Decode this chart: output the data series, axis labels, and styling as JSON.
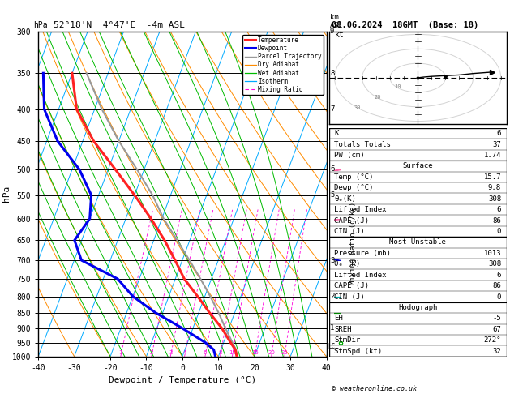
{
  "title_left": "52°18'N  4°47'E  -4m ASL",
  "title_right": "08.06.2024  18GMT  (Base: 18)",
  "xlabel": "Dewpoint / Temperature (°C)",
  "ylabel_left": "hPa",
  "pressure_levels": [
    300,
    350,
    400,
    450,
    500,
    550,
    600,
    650,
    700,
    750,
    800,
    850,
    900,
    950,
    1000
  ],
  "isotherm_color": "#00aaff",
  "dry_adiabat_color": "#ff8c00",
  "wet_adiabat_color": "#00bb00",
  "mixing_ratio_color": "#ff00dd",
  "temperature_color": "#ff2222",
  "dewpoint_color": "#0000ee",
  "parcel_color": "#999999",
  "skew_factor": 28,
  "sounding_temp": [
    15.7,
    14.0,
    12.0,
    8.0,
    3.0,
    -2.0,
    -7.5,
    -12.0,
    -17.0,
    -23.0,
    -30.0,
    -38.0,
    -47.0,
    -55.0,
    -60.0
  ],
  "sounding_dewp": [
    9.8,
    8.0,
    5.0,
    -3.0,
    -12.0,
    -20.0,
    -26.0,
    -38.0,
    -42.0,
    -40.0,
    -42.0,
    -48.0,
    -57.0,
    -64.0,
    -68.0
  ],
  "sounding_pres": [
    1013,
    975,
    950,
    900,
    850,
    800,
    750,
    700,
    650,
    600,
    550,
    500,
    450,
    400,
    350
  ],
  "parcel_temp": [
    15.7,
    14.2,
    12.5,
    9.0,
    5.5,
    1.5,
    -3.0,
    -8.0,
    -13.5,
    -19.5,
    -25.0,
    -32.0,
    -40.0,
    -48.0,
    -56.0
  ],
  "parcel_pres": [
    1013,
    975,
    950,
    900,
    850,
    800,
    750,
    700,
    650,
    600,
    550,
    500,
    450,
    400,
    350
  ],
  "mixing_ratios": [
    1,
    2,
    3,
    4,
    6,
    8,
    10,
    15,
    20,
    25
  ],
  "lcl_pressure": 963,
  "km_labels": [
    [
      300,
      "9"
    ],
    [
      350,
      "8"
    ],
    [
      400,
      "7"
    ],
    [
      500,
      "6"
    ],
    [
      550,
      "5"
    ],
    [
      700,
      "3"
    ],
    [
      800,
      "2"
    ],
    [
      900,
      "1"
    ],
    [
      963,
      "LCL"
    ]
  ],
  "wind_barb_data": [
    [
      350,
      25,
      5
    ],
    [
      400,
      22,
      3
    ],
    [
      500,
      18,
      2
    ],
    [
      600,
      12,
      1
    ],
    [
      700,
      8,
      -1
    ],
    [
      800,
      5,
      0
    ],
    [
      850,
      3,
      0
    ],
    [
      950,
      1,
      0
    ]
  ],
  "info_K": 6,
  "info_TT": 37,
  "info_PW": "1.74",
  "surf_temp": "15.7",
  "surf_dewp": "9.8",
  "surf_theta_e": 308,
  "surf_LI": 6,
  "surf_CAPE": 86,
  "surf_CIN": 0,
  "mu_pres": 1013,
  "mu_theta_e": 308,
  "mu_LI": 6,
  "mu_CAPE": 86,
  "mu_CIN": 0,
  "hodo_EH": -5,
  "hodo_SREH": 67,
  "hodo_StmDir": 272,
  "hodo_StmSpd": 32,
  "copyright": "© weatheronline.co.uk"
}
